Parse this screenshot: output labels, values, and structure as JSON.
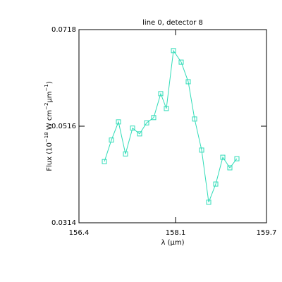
{
  "chart_data": {
    "type": "line",
    "title": "line 0, detector 8",
    "xlabel": "λ (μm)",
    "ylabel": [
      "Flux (10",
      "−18",
      " W cm",
      "−2",
      "μm",
      "−1",
      ")"
    ],
    "x": [
      156.847,
      156.971,
      157.095,
      157.219,
      157.343,
      157.467,
      157.591,
      157.715,
      157.839,
      157.938,
      158.063,
      158.199,
      158.323,
      158.435,
      158.559,
      158.683,
      158.807,
      158.931,
      159.055,
      159.179
    ],
    "series": [
      {
        "color": "#30dcb8",
        "values": [
          0.0442,
          0.0487,
          0.0525,
          0.0458,
          0.0512,
          0.05,
          0.0523,
          0.0534,
          0.0584,
          0.0553,
          0.0674,
          0.065,
          0.0609,
          0.0531,
          0.0466,
          0.0357,
          0.0395,
          0.0451,
          0.0429,
          0.0448
        ]
      }
    ],
    "xlim": [
      156.4,
      159.7
    ],
    "xticks": [
      156.4,
      158.1,
      159.7
    ],
    "ylim": [
      0.0314,
      0.0718
    ],
    "yticks": [
      0.0314,
      0.0516,
      0.0718
    ]
  }
}
